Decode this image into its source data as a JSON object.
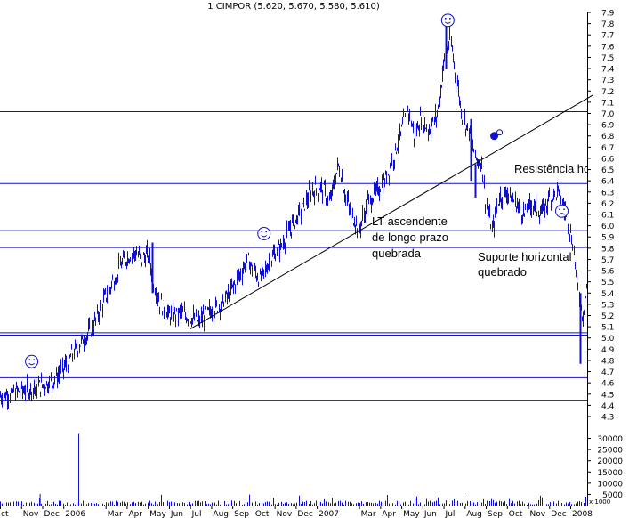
{
  "title": "1 CIMPOR (5.620, 5.670, 5.580, 5.610)",
  "chart_data": {
    "type": "bar",
    "title": "1 CIMPOR (5.620, 5.670, 5.580, 5.610)",
    "last_bar": {
      "open": 5.62,
      "high": 5.67,
      "low": 5.58,
      "close": 5.61
    },
    "price_axis": {
      "ylim": [
        4.3,
        7.9
      ],
      "ticks": [
        "4.3",
        "4.4",
        "4.5",
        "4.6",
        "4.7",
        "4.8",
        "4.9",
        "5.0",
        "5.1",
        "5.2",
        "5.3",
        "5.4",
        "5.5",
        "5.6",
        "5.7",
        "5.8",
        "5.9",
        "6.0",
        "6.1",
        "6.2",
        "6.3",
        "6.4",
        "6.5",
        "6.6",
        "6.7",
        "6.8",
        "6.9",
        "7.0",
        "7.1",
        "7.2",
        "7.3",
        "7.4",
        "7.5",
        "7.6",
        "7.7",
        "7.8",
        "7.9"
      ]
    },
    "volume_axis": {
      "ylim": [
        0,
        33000
      ],
      "ticks": [
        "5000",
        "10000",
        "15000",
        "20000",
        "25000",
        "30000"
      ],
      "unit_label": "x 1000"
    },
    "x_axis": {
      "range": [
        0,
        27.8
      ],
      "labels": [
        {
          "label": "ct",
          "t": 0
        },
        {
          "label": "Nov",
          "t": 1
        },
        {
          "label": "Dec",
          "t": 2
        },
        {
          "label": "2006",
          "t": 3
        },
        {
          "label": "Mar",
          "t": 5
        },
        {
          "label": "Apr",
          "t": 6
        },
        {
          "label": "May",
          "t": 7
        },
        {
          "label": "Jun",
          "t": 8
        },
        {
          "label": "Jul",
          "t": 9
        },
        {
          "label": "Aug",
          "t": 10
        },
        {
          "label": "Sep",
          "t": 11
        },
        {
          "label": "Oct",
          "t": 12
        },
        {
          "label": "Nov",
          "t": 13
        },
        {
          "label": "Dec",
          "t": 14
        },
        {
          "label": "2007",
          "t": 15
        },
        {
          "label": "Mar",
          "t": 17
        },
        {
          "label": "Apr",
          "t": 18
        },
        {
          "label": "May",
          "t": 19
        },
        {
          "label": "Jun",
          "t": 20
        },
        {
          "label": "Jul",
          "t": 21
        },
        {
          "label": "Aug",
          "t": 22
        },
        {
          "label": "Sep",
          "t": 23
        },
        {
          "label": "Oct",
          "t": 24
        },
        {
          "label": "Nov",
          "t": 25
        },
        {
          "label": "Dec",
          "t": 26
        },
        {
          "label": "2008",
          "t": 27
        }
      ]
    },
    "price_path": [
      [
        0.0,
        4.48
      ],
      [
        0.7,
        4.52
      ],
      [
        1.5,
        4.55
      ],
      [
        2.0,
        4.58
      ],
      [
        2.5,
        4.62
      ],
      [
        2.9,
        4.7
      ],
      [
        3.4,
        4.85
      ],
      [
        3.9,
        4.98
      ],
      [
        4.4,
        5.1
      ],
      [
        4.8,
        5.3
      ],
      [
        5.2,
        5.45
      ],
      [
        5.6,
        5.62
      ],
      [
        6.0,
        5.72
      ],
      [
        6.4,
        5.76
      ],
      [
        6.7,
        5.7
      ],
      [
        7.0,
        5.75
      ],
      [
        7.3,
        5.45
      ],
      [
        7.6,
        5.3
      ],
      [
        8.0,
        5.2
      ],
      [
        8.5,
        5.22
      ],
      [
        9.0,
        5.18
      ],
      [
        9.4,
        5.15
      ],
      [
        9.8,
        5.22
      ],
      [
        10.3,
        5.28
      ],
      [
        10.8,
        5.38
      ],
      [
        11.3,
        5.55
      ],
      [
        11.7,
        5.7
      ],
      [
        12.0,
        5.6
      ],
      [
        12.3,
        5.52
      ],
      [
        12.8,
        5.7
      ],
      [
        13.3,
        5.82
      ],
      [
        13.8,
        6.0
      ],
      [
        14.3,
        6.15
      ],
      [
        14.7,
        6.3
      ],
      [
        15.2,
        6.35
      ],
      [
        15.6,
        6.2
      ],
      [
        16.0,
        6.55
      ],
      [
        16.3,
        6.3
      ],
      [
        16.6,
        6.1
      ],
      [
        17.0,
        5.98
      ],
      [
        17.4,
        6.2
      ],
      [
        17.8,
        6.3
      ],
      [
        18.2,
        6.4
      ],
      [
        18.6,
        6.6
      ],
      [
        19.0,
        6.85
      ],
      [
        19.3,
        7.05
      ],
      [
        19.6,
        6.8
      ],
      [
        19.9,
        6.95
      ],
      [
        20.3,
        6.85
      ],
      [
        20.7,
        7.0
      ],
      [
        21.0,
        7.45
      ],
      [
        21.3,
        7.65
      ],
      [
        21.6,
        7.3
      ],
      [
        21.9,
        6.95
      ],
      [
        22.2,
        6.85
      ],
      [
        22.5,
        6.6
      ],
      [
        22.8,
        6.55
      ],
      [
        23.0,
        6.2
      ],
      [
        23.3,
        5.95
      ],
      [
        23.6,
        6.25
      ],
      [
        24.0,
        6.3
      ],
      [
        24.4,
        6.2
      ],
      [
        24.8,
        6.1
      ],
      [
        25.2,
        6.2
      ],
      [
        25.6,
        6.1
      ],
      [
        26.0,
        6.25
      ],
      [
        26.4,
        6.3
      ],
      [
        26.8,
        6.1
      ],
      [
        27.1,
        5.85
      ],
      [
        27.3,
        5.5
      ],
      [
        27.45,
        5.3
      ],
      [
        27.6,
        5.2
      ],
      [
        27.8,
        5.55
      ]
    ],
    "horizontal_lines": [
      7.02,
      6.38,
      5.96,
      5.81,
      5.05,
      5.03,
      4.65,
      4.45
    ],
    "trendline": {
      "from": [
        9.0,
        5.08
      ],
      "to": [
        27.8,
        7.15
      ]
    },
    "annotations": [
      {
        "text": "LT ascendente",
        "color": "#000000"
      },
      {
        "text": "de longo prazo",
        "color": "#000000"
      },
      {
        "text": "quebrada",
        "color": "#000000"
      },
      {
        "text": "Resistência ho",
        "color": "#1010cc"
      },
      {
        "text": "Suporte horizontal",
        "color": "#1010cc"
      },
      {
        "text": "quebrado",
        "color": "#1010cc"
      }
    ],
    "markers": [
      {
        "t": 1.5,
        "price": 4.79,
        "kind": "smiley"
      },
      {
        "t": 12.5,
        "price": 5.93,
        "kind": "smiley"
      },
      {
        "t": 21.2,
        "price": 7.83,
        "kind": "top"
      },
      {
        "t": 23.4,
        "price": 6.8,
        "kind": "dot"
      },
      {
        "t": 26.6,
        "price": 6.13,
        "kind": "frown"
      }
    ],
    "volume_spike": {
      "t": 3.7,
      "value": 32000
    },
    "grid": false,
    "colors": {
      "bars": "#1010cc",
      "levels": "#1010cc",
      "trendline": "#000000",
      "background": "#ffffff"
    }
  }
}
